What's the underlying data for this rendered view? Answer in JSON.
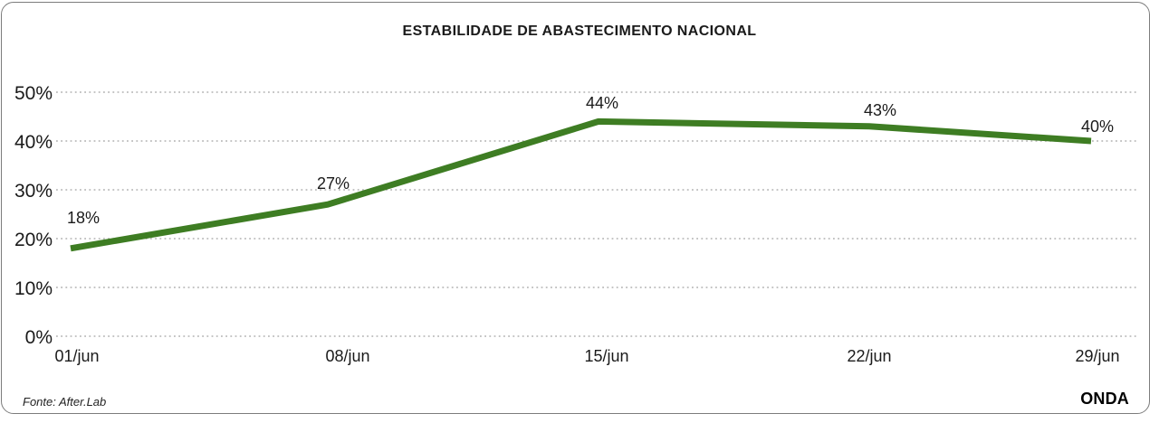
{
  "card": {
    "title": "ESTABILIDADE DE ABASTECIMENTO NACIONAL",
    "source_label": "Fonte: After.Lab",
    "brand": "ONDA"
  },
  "chart_data": {
    "type": "line",
    "title": "ESTABILIDADE DE ABASTECIMENTO NACIONAL",
    "categories": [
      "01/jun",
      "08/jun",
      "15/jun",
      "22/jun",
      "29/jun"
    ],
    "values": [
      18,
      27,
      44,
      43,
      40
    ],
    "data_labels": [
      "18%",
      "27%",
      "44%",
      "43%",
      "40%"
    ],
    "ylim": [
      0,
      50
    ],
    "yticks": [
      50,
      40,
      30,
      20,
      10,
      0
    ],
    "ytick_labels": [
      "50%",
      "40%",
      "30%",
      "20%",
      "10%",
      "0%"
    ],
    "xlabel": "",
    "ylabel": "",
    "grid": "horizontal-dotted",
    "legend": "none",
    "colors": {
      "line": "#3e7d23",
      "grid": "#b0b0b0",
      "text": "#1a1a1a",
      "border": "#7c7c7c",
      "background": "#ffffff"
    },
    "source": "Fonte: After.Lab",
    "brand": "ONDA"
  }
}
